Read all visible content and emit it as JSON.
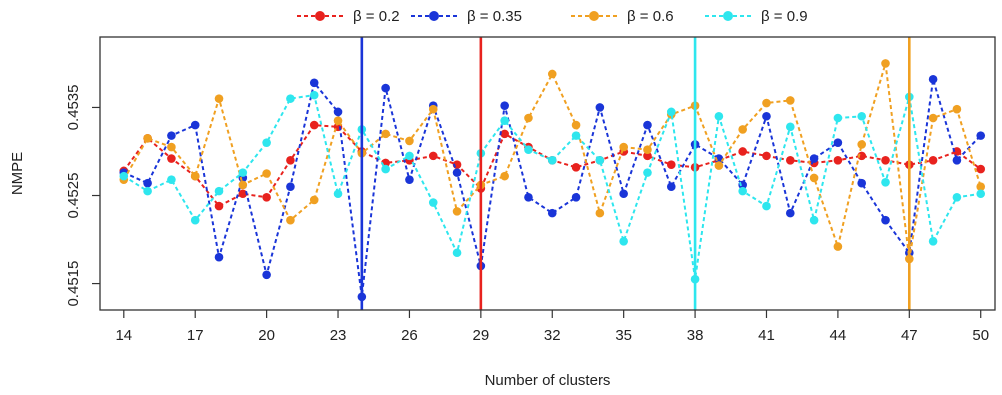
{
  "chart_data": {
    "type": "line",
    "title": "",
    "xlabel": "Number of clusters",
    "ylabel": "NMPE",
    "xlim": [
      13,
      50.6
    ],
    "ylim": [
      0.4512,
      0.4543
    ],
    "xticks": [
      14,
      17,
      20,
      23,
      26,
      29,
      32,
      35,
      38,
      41,
      44,
      47,
      50
    ],
    "yticks": [
      0.4515,
      0.4525,
      0.4535
    ],
    "ytick_labels": [
      "0.4515",
      "0.4525",
      "0.4535"
    ],
    "grid": false,
    "legend_position": "top-center",
    "x": [
      14,
      15,
      16,
      17,
      18,
      19,
      20,
      21,
      22,
      23,
      24,
      25,
      26,
      27,
      28,
      29,
      30,
      31,
      32,
      33,
      34,
      35,
      36,
      37,
      38,
      39,
      40,
      41,
      42,
      43,
      44,
      45,
      46,
      47,
      48,
      49,
      50
    ],
    "series": [
      {
        "name": "β = 0.2",
        "color": "#e8221e",
        "values": [
          0.45278,
          0.45315,
          0.45292,
          0.45272,
          0.45238,
          0.45252,
          0.45248,
          0.4529,
          0.4533,
          0.45328,
          0.453,
          0.45287,
          0.4529,
          0.45295,
          0.45285,
          0.45258,
          0.4532,
          0.45305,
          0.4529,
          0.45282,
          0.4529,
          0.453,
          0.45295,
          0.45285,
          0.45282,
          0.4529,
          0.453,
          0.45295,
          0.4529,
          0.45287,
          0.4529,
          0.45295,
          0.4529,
          0.45285,
          0.4529,
          0.453,
          0.4528
        ],
        "vline": 29
      },
      {
        "name": "β = 0.35",
        "color": "#1a35d8",
        "values": [
          0.45276,
          0.45264,
          0.45318,
          0.4533,
          0.4518,
          0.4527,
          0.4516,
          0.4526,
          0.45378,
          0.45345,
          0.45135,
          0.45372,
          0.45268,
          0.45352,
          0.45276,
          0.4517,
          0.45352,
          0.45248,
          0.4523,
          0.45248,
          0.4535,
          0.45252,
          0.4533,
          0.4526,
          0.45308,
          0.45292,
          0.45262,
          0.4534,
          0.4523,
          0.45292,
          0.4531,
          0.45264,
          0.45222,
          0.45185,
          0.45382,
          0.4529,
          0.45318
        ],
        "vline": 24
      },
      {
        "name": "β = 0.6",
        "color": "#f0a021",
        "values": [
          0.45268,
          0.45315,
          0.45305,
          0.45272,
          0.4536,
          0.45262,
          0.45275,
          0.45222,
          0.45245,
          0.45335,
          0.45298,
          0.4532,
          0.45312,
          0.45348,
          0.45232,
          0.45262,
          0.45272,
          0.45338,
          0.45388,
          0.4533,
          0.4523,
          0.45305,
          0.45302,
          0.45342,
          0.45352,
          0.45284,
          0.45325,
          0.45355,
          0.45358,
          0.4527,
          0.45192,
          0.45308,
          0.454,
          0.45178,
          0.45338,
          0.45348,
          0.4526
        ],
        "vline": 47
      },
      {
        "name": "β = 0.9",
        "color": "#2ee6ee",
        "values": [
          0.45272,
          0.45255,
          0.45268,
          0.45222,
          0.45255,
          0.45276,
          0.4531,
          0.4536,
          0.45364,
          0.45252,
          0.45325,
          0.4528,
          0.45295,
          0.45242,
          0.45185,
          0.45298,
          0.45335,
          0.45302,
          0.4529,
          0.45318,
          0.4529,
          0.45198,
          0.45276,
          0.45345,
          0.45155,
          0.4534,
          0.45255,
          0.45238,
          0.45328,
          0.45222,
          0.45338,
          0.4534,
          0.45265,
          0.45362,
          0.45198,
          0.45248,
          0.45252
        ],
        "vline": 38
      }
    ]
  }
}
